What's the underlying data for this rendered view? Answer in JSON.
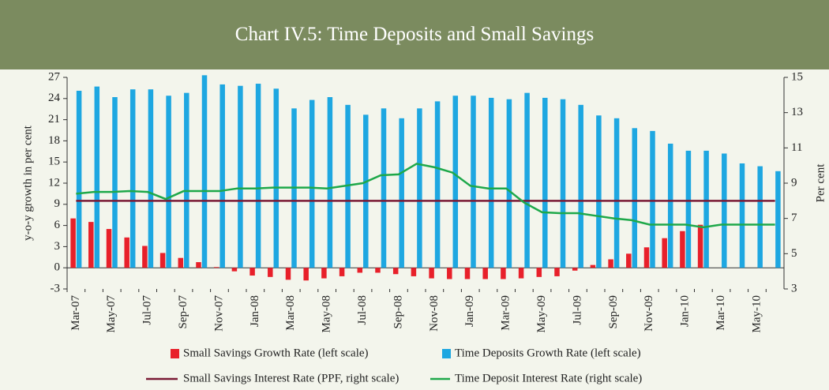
{
  "chart_data": {
    "type": "bar",
    "title": "Chart IV.5: Time Deposits and Small Savings",
    "y_label": "y-o-y growth in per cent",
    "y2_label": "Per cent",
    "categories": [
      "Mar-07",
      null,
      "May-07",
      null,
      "Jul-07",
      null,
      "Sep-07",
      null,
      "Nov-07",
      null,
      "Jan-08",
      null,
      "Mar-08",
      null,
      "May-08",
      null,
      "Jul-08",
      null,
      "Sep-08",
      null,
      "Nov-08",
      null,
      "Jan-09",
      null,
      "Mar-09",
      null,
      "May-09",
      null,
      "Jul-09",
      null,
      "Sep-09",
      null,
      "Nov-09",
      null,
      "Jan-10",
      null,
      "Mar-10",
      null,
      "May-10",
      null
    ],
    "ylim": [
      -3,
      27
    ],
    "yticks": [
      -3,
      0,
      3,
      6,
      9,
      12,
      15,
      18,
      21,
      24,
      27
    ],
    "y2lim": [
      3,
      15
    ],
    "y2ticks": [
      3,
      5,
      7,
      9,
      11,
      13,
      15
    ],
    "series": [
      {
        "name": "Small Savings Growth Rate (left scale)",
        "type": "bar",
        "color": "#e8202a",
        "values": [
          7.0,
          6.5,
          5.5,
          4.3,
          3.1,
          2.1,
          1.4,
          0.8,
          0.1,
          -0.5,
          -1.1,
          -1.3,
          -1.7,
          -1.8,
          -1.5,
          -1.2,
          -0.7,
          -0.7,
          -0.9,
          -1.2,
          -1.5,
          -1.6,
          -1.6,
          -1.6,
          -1.6,
          -1.5,
          -1.3,
          -1.2,
          -0.4,
          0.4,
          1.2,
          2.0,
          2.9,
          4.2,
          5.2,
          6.1,
          null,
          null,
          null,
          null
        ]
      },
      {
        "name": "Time Deposits Growth Rate (left scale)",
        "type": "bar",
        "color": "#1ea7e1",
        "values": [
          25.1,
          25.7,
          24.2,
          25.3,
          25.3,
          24.4,
          24.8,
          27.3,
          26.0,
          25.8,
          26.1,
          25.4,
          22.6,
          23.8,
          24.2,
          23.1,
          21.7,
          22.6,
          21.2,
          22.6,
          23.6,
          24.4,
          24.4,
          24.1,
          23.9,
          24.8,
          24.1,
          23.9,
          23.1,
          21.6,
          21.2,
          19.8,
          19.4,
          17.6,
          16.6,
          16.6,
          16.2,
          14.8,
          14.4,
          13.7
        ]
      },
      {
        "name": "Small Savings Interest Rate (PPF, right scale)",
        "type": "line",
        "axis": "y2",
        "color": "#7a1a35",
        "values": [
          8,
          8,
          8,
          8,
          8,
          8,
          8,
          8,
          8,
          8,
          8,
          8,
          8,
          8,
          8,
          8,
          8,
          8,
          8,
          8,
          8,
          8,
          8,
          8,
          8,
          8,
          8,
          8,
          8,
          8,
          8,
          8,
          8,
          8,
          8,
          8,
          8,
          8,
          8,
          8
        ]
      },
      {
        "name": "Time Deposit Interest Rate (right scale)",
        "type": "line",
        "axis": "y2",
        "color": "#1ea84a",
        "values": [
          8.4,
          8.5,
          8.5,
          8.55,
          8.5,
          8.1,
          8.55,
          8.55,
          8.55,
          8.7,
          8.7,
          8.75,
          8.75,
          8.75,
          8.7,
          8.85,
          9.0,
          9.45,
          9.5,
          10.1,
          9.9,
          9.6,
          8.85,
          8.7,
          8.7,
          7.9,
          7.35,
          7.3,
          7.3,
          7.15,
          7.0,
          6.9,
          6.65,
          6.65,
          6.65,
          6.5,
          6.65,
          6.65,
          6.65,
          6.65
        ]
      }
    ]
  }
}
